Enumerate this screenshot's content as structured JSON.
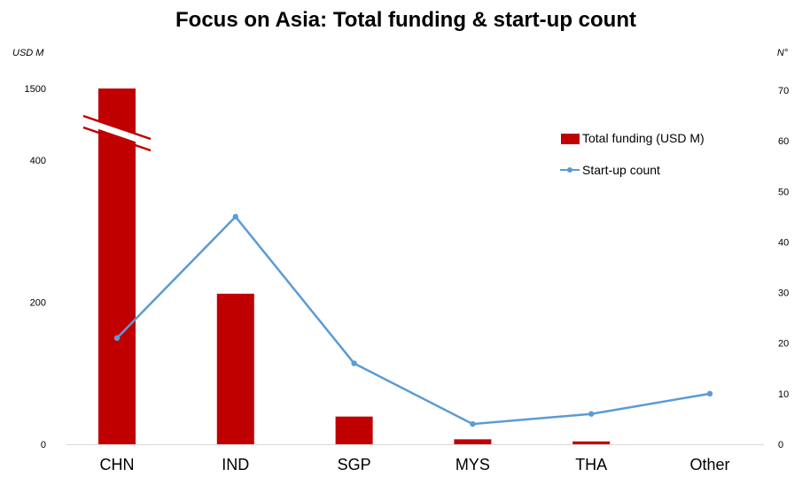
{
  "chart_data": {
    "type": "bar",
    "title": "Focus on Asia: Total funding & start-up count",
    "left_axis_unit": "USD M",
    "right_axis_unit": "N°",
    "categories": [
      "CHN",
      "IND",
      "SGP",
      "MYS",
      "THA",
      "Other"
    ],
    "left_axis_ticks": [
      "0",
      "200",
      "400",
      "1500"
    ],
    "right_axis_ticks": [
      "0",
      "10",
      "20",
      "30",
      "40",
      "50",
      "60",
      "70"
    ],
    "left_axis_break": [
      400,
      1500
    ],
    "right_ylim": [
      0,
      70
    ],
    "series": [
      {
        "name": "Total funding (USD M)",
        "type": "bar",
        "axis": "left",
        "color": "#c00000",
        "values": [
          1500,
          212,
          39,
          7,
          4,
          0
        ]
      },
      {
        "name": "Start-up count",
        "type": "line",
        "axis": "right",
        "color": "#5b9bd5",
        "values": [
          21,
          45,
          16,
          4,
          6,
          10
        ]
      }
    ],
    "legend_position": "upper-right",
    "grid": false
  }
}
